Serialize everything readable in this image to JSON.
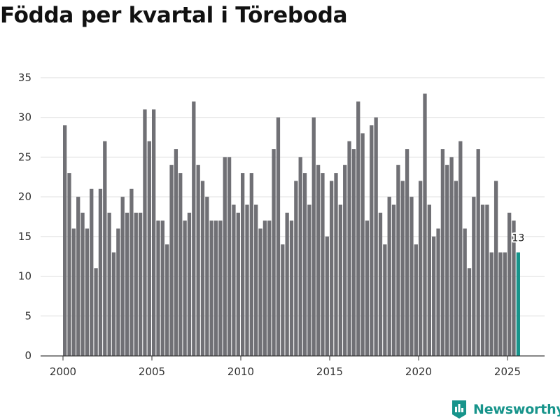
{
  "chart_data": {
    "type": "bar",
    "title": "Födda per kvartal i Töreboda",
    "xlabel": "",
    "ylabel": "",
    "ylim": [
      0,
      35
    ],
    "yticks": [
      0,
      5,
      10,
      15,
      20,
      25,
      30,
      35
    ],
    "xticks": [
      {
        "label": "2000",
        "year": 2000
      },
      {
        "label": "2005",
        "year": 2005
      },
      {
        "label": "2010",
        "year": 2010
      },
      {
        "label": "2015",
        "year": 2015
      },
      {
        "label": "2020",
        "year": 2020
      },
      {
        "label": "2025",
        "year": 2025
      }
    ],
    "start_year": 2000,
    "bars_per_year": 4,
    "grid": true,
    "values": [
      29,
      23,
      16,
      20,
      18,
      16,
      21,
      11,
      21,
      27,
      18,
      13,
      16,
      20,
      18,
      21,
      18,
      18,
      31,
      27,
      31,
      17,
      17,
      14,
      24,
      26,
      23,
      17,
      18,
      32,
      24,
      22,
      20,
      17,
      17,
      17,
      25,
      25,
      19,
      18,
      23,
      19,
      23,
      19,
      16,
      17,
      17,
      26,
      30,
      14,
      18,
      17,
      22,
      25,
      23,
      19,
      30,
      24,
      23,
      15,
      22,
      23,
      19,
      24,
      27,
      26,
      32,
      28,
      17,
      29,
      30,
      18,
      14,
      20,
      19,
      24,
      22,
      26,
      20,
      14,
      22,
      33,
      19,
      15,
      16,
      26,
      24,
      25,
      22,
      27,
      16,
      11,
      20,
      26,
      19,
      19,
      13,
      22,
      13,
      13,
      18,
      17,
      13
    ],
    "highlight_last": true,
    "last_label": "13",
    "colors": {
      "bar": "#707075",
      "highlight": "#17948b",
      "grid": "#dddddd",
      "axis": "#333333"
    }
  },
  "brand": {
    "name": "Newsworthy",
    "icon": "newsworthy-logo-icon"
  }
}
